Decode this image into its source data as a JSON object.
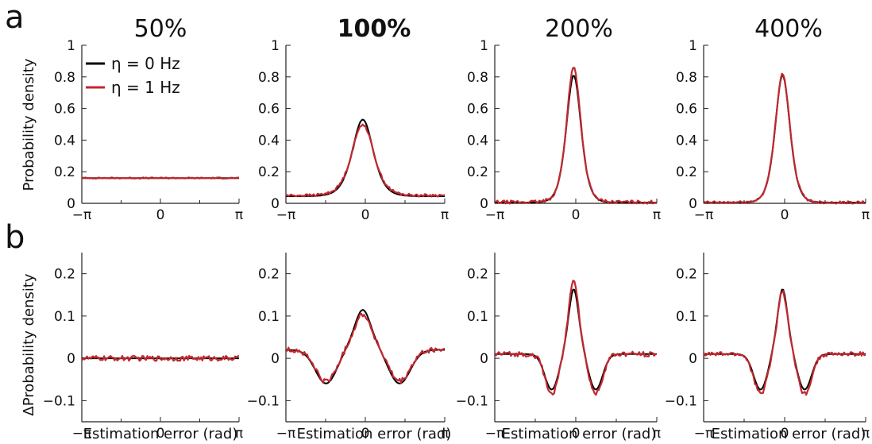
{
  "panel_letters": [
    "a",
    "b"
  ],
  "column_titles": [
    "50%",
    "100%",
    "200%",
    "400%"
  ],
  "highlighted_column": "100%",
  "colors": {
    "eta0": "#000000",
    "eta1": "#c0282f"
  },
  "legend": [
    {
      "label": "η = 0 Hz",
      "color": "#000000"
    },
    {
      "label": "η = 1 Hz",
      "color": "#c0282f"
    }
  ],
  "chart_data": [
    {
      "type": "line",
      "row": "a",
      "column": "50%",
      "xlabel": "",
      "ylabel": "Probability density",
      "xlim": [
        -3.1416,
        3.1416
      ],
      "ylim": [
        0,
        1
      ],
      "xticks": [
        "−π",
        "0",
        "π"
      ],
      "yticks": [
        "0",
        "0.2",
        "0.4",
        "0.6",
        "0.8",
        "1"
      ],
      "series": [
        {
          "name": "η = 0 Hz",
          "shape": "flat",
          "baseline": 0.16,
          "peak": 0.16,
          "peak_x": 0,
          "width": 1.0
        },
        {
          "name": "η = 1 Hz",
          "shape": "flat",
          "baseline": 0.16,
          "peak": 0.16,
          "peak_x": 0,
          "width": 1.0,
          "noise": 0.004
        }
      ]
    },
    {
      "type": "line",
      "row": "a",
      "column": "100%",
      "xlim": [
        -3.1416,
        3.1416
      ],
      "ylim": [
        0,
        1
      ],
      "xticks": [
        "−π",
        "0",
        "π"
      ],
      "yticks": [
        "0",
        "0.2",
        "0.4",
        "0.6",
        "0.8",
        "1"
      ],
      "series": [
        {
          "name": "η = 0 Hz",
          "shape": "bump",
          "baseline": 0.045,
          "peak": 0.53,
          "peak_x": -0.1,
          "width": 0.55
        },
        {
          "name": "η = 1 Hz",
          "shape": "bump",
          "baseline": 0.05,
          "peak": 0.5,
          "peak_x": -0.1,
          "width": 0.58,
          "noise": 0.008
        }
      ]
    },
    {
      "type": "line",
      "row": "a",
      "column": "200%",
      "xlim": [
        -3.1416,
        3.1416
      ],
      "ylim": [
        0,
        1
      ],
      "xticks": [
        "−π",
        "0",
        "π"
      ],
      "yticks": [
        "0",
        "0.2",
        "0.4",
        "0.6",
        "0.8",
        "1"
      ],
      "series": [
        {
          "name": "η = 0 Hz",
          "shape": "bump",
          "baseline": 0.005,
          "peak": 0.81,
          "peak_x": -0.08,
          "width": 0.38
        },
        {
          "name": "η = 1 Hz",
          "shape": "bump",
          "baseline": 0.008,
          "peak": 0.86,
          "peak_x": -0.08,
          "width": 0.37,
          "noise": 0.01
        }
      ]
    },
    {
      "type": "line",
      "row": "a",
      "column": "400%",
      "xlim": [
        -3.1416,
        3.1416
      ],
      "ylim": [
        0,
        1
      ],
      "xticks": [
        "−π",
        "0",
        "π"
      ],
      "yticks": [
        "0",
        "0.2",
        "0.4",
        "0.6",
        "0.8",
        "1"
      ],
      "series": [
        {
          "name": "η = 0 Hz",
          "shape": "bump",
          "baseline": 0.005,
          "peak": 0.81,
          "peak_x": -0.08,
          "width": 0.38
        },
        {
          "name": "η = 1 Hz",
          "shape": "bump",
          "baseline": 0.006,
          "peak": 0.82,
          "peak_x": -0.08,
          "width": 0.38,
          "noise": 0.008
        }
      ]
    },
    {
      "type": "line",
      "row": "b",
      "column": "50%",
      "xlabel": "Estimation error (rad)",
      "ylabel": "ΔProbability density",
      "xlim": [
        -3.1416,
        3.1416
      ],
      "ylim": [
        -0.15,
        0.25
      ],
      "xticks": [
        "−π",
        "0",
        "π"
      ],
      "yticks": [
        "−0.1",
        "0",
        "0.1",
        "0.2"
      ],
      "series": [
        {
          "name": "η = 0 Hz",
          "shape": "flat",
          "baseline": 0,
          "peak": 0,
          "peak_x": 0,
          "width": 1.0
        },
        {
          "name": "η = 1 Hz",
          "shape": "flat",
          "baseline": 0,
          "peak": 0,
          "peak_x": 0,
          "width": 1.0,
          "noise": 0.006
        }
      ]
    },
    {
      "type": "line",
      "row": "b",
      "column": "100%",
      "xlabel": "Estimation error (rad)",
      "xlim": [
        -3.1416,
        3.1416
      ],
      "ylim": [
        -0.15,
        0.25
      ],
      "xticks": [
        "−π",
        "0",
        "π"
      ],
      "yticks": [
        "−0.1",
        "0",
        "0.1",
        "0.2"
      ],
      "series": [
        {
          "name": "η = 0 Hz",
          "shape": "diff",
          "baseline": 0.02,
          "peak": 0.115,
          "trough": -0.06,
          "peak_x": -0.1,
          "width": 0.45,
          "trough_offset": 1.45,
          "trough_width": 0.6
        },
        {
          "name": "η = 1 Hz",
          "shape": "diff",
          "baseline": 0.02,
          "peak": 0.105,
          "trough": -0.055,
          "peak_x": -0.1,
          "width": 0.47,
          "trough_offset": 1.45,
          "trough_width": 0.6,
          "noise": 0.006
        }
      ]
    },
    {
      "type": "line",
      "row": "b",
      "column": "200%",
      "xlabel": "Estimation error (rad)",
      "xlim": [
        -3.1416,
        3.1416
      ],
      "ylim": [
        -0.15,
        0.25
      ],
      "xticks": [
        "−π",
        "0",
        "π"
      ],
      "yticks": [
        "−0.1",
        "0",
        "0.1",
        "0.2"
      ],
      "series": [
        {
          "name": "η = 0 Hz",
          "shape": "diff",
          "baseline": 0.01,
          "peak": 0.165,
          "trough": -0.075,
          "peak_x": -0.08,
          "width": 0.27,
          "trough_offset": 0.85,
          "trough_width": 0.38
        },
        {
          "name": "η = 1 Hz",
          "shape": "diff",
          "baseline": 0.01,
          "peak": 0.19,
          "trough": -0.085,
          "peak_x": -0.08,
          "width": 0.26,
          "trough_offset": 0.85,
          "trough_width": 0.37,
          "noise": 0.006
        }
      ]
    },
    {
      "type": "line",
      "row": "b",
      "column": "400%",
      "xlabel": "Estimation error (rad)",
      "xlim": [
        -3.1416,
        3.1416
      ],
      "ylim": [
        -0.15,
        0.25
      ],
      "xticks": [
        "−π",
        "0",
        "π"
      ],
      "yticks": [
        "−0.1",
        "0",
        "0.1",
        "0.2"
      ],
      "series": [
        {
          "name": "η = 0 Hz",
          "shape": "diff",
          "baseline": 0.01,
          "peak": 0.165,
          "trough": -0.075,
          "peak_x": -0.08,
          "width": 0.27,
          "trough_offset": 0.85,
          "trough_width": 0.38
        },
        {
          "name": "η = 1 Hz",
          "shape": "diff",
          "baseline": 0.01,
          "peak": 0.16,
          "trough": -0.085,
          "peak_x": -0.08,
          "width": 0.27,
          "trough_offset": 0.85,
          "trough_width": 0.38,
          "noise": 0.005
        }
      ]
    }
  ]
}
